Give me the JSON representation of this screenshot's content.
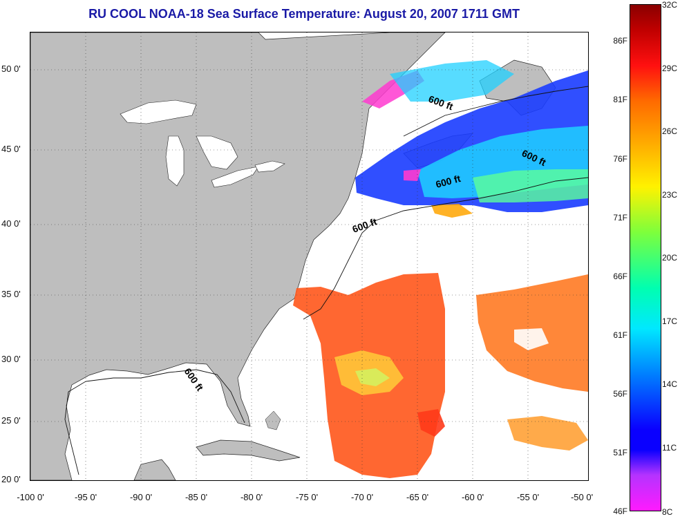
{
  "title": "RU COOL  NOAA-18  Sea Surface Temperature:  August 20, 2007 1711 GMT",
  "map": {
    "lat_labels": [
      "50 0'",
      "45 0'",
      "40 0'",
      "35 0'",
      "30 0'",
      "25 0'",
      "20 0'"
    ],
    "lon_labels": [
      "-100 0'",
      "-95 0'",
      "-90 0'",
      "-85 0'",
      "-80 0'",
      "-75 0'",
      "-70 0'",
      "-65 0'",
      "-60 0'",
      "-55 0'",
      "-50 0'"
    ],
    "isobath_label": "600 ft",
    "land_color": "#bebebe",
    "ocean_color": "#ffffff",
    "isobath_labels": [
      "600 ft",
      "600 ft",
      "600 ft",
      "600 ft",
      "600 ft"
    ]
  },
  "colorbar": {
    "fahrenheit": [
      "86F",
      "81F",
      "76F",
      "71F",
      "66F",
      "61F",
      "56F",
      "51F",
      "46F"
    ],
    "celsius": [
      "32C",
      "29C",
      "26C",
      "23C",
      "20C",
      "17C",
      "14C",
      "11C",
      "8C"
    ]
  }
}
